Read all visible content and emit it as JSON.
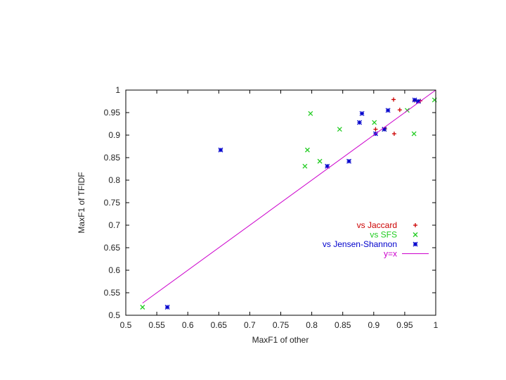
{
  "chart_data": {
    "type": "scatter",
    "title": "",
    "xlabel": "MaxF1 of other",
    "ylabel": "MaxF1 of TFIDF",
    "xlim": [
      0.5,
      1.0
    ],
    "ylim": [
      0.5,
      1.0
    ],
    "xticks": [
      "0.5",
      "0.55",
      "0.6",
      "0.65",
      "0.7",
      "0.75",
      "0.8",
      "0.85",
      "0.9",
      "0.95",
      "1"
    ],
    "yticks": [
      "0.5",
      "0.55",
      "0.6",
      "0.65",
      "0.7",
      "0.75",
      "0.8",
      "0.85",
      "0.9",
      "0.95",
      "1"
    ],
    "xtick_values": [
      0.5,
      0.55,
      0.6,
      0.65,
      0.7,
      0.75,
      0.8,
      0.85,
      0.9,
      0.95,
      1.0
    ],
    "ytick_values": [
      0.5,
      0.55,
      0.6,
      0.65,
      0.7,
      0.75,
      0.8,
      0.85,
      0.9,
      0.95,
      1.0
    ],
    "grid": false,
    "legend_position": "right-middle",
    "series": [
      {
        "name": "vs Jaccard",
        "marker": "plus",
        "color": "#cc0000",
        "points": [
          [
            0.932,
            0.979
          ],
          [
            0.942,
            0.956
          ],
          [
            0.903,
            0.913
          ],
          [
            0.933,
            0.903
          ],
          [
            0.918,
            0.914
          ],
          [
            0.975,
            0.976
          ],
          [
            0.966,
            0.977
          ]
        ]
      },
      {
        "name": "vs SFS",
        "marker": "x",
        "color": "#22cc22",
        "points": [
          [
            0.527,
            0.518
          ],
          [
            0.798,
            0.948
          ],
          [
            0.845,
            0.913
          ],
          [
            0.793,
            0.867
          ],
          [
            0.789,
            0.831
          ],
          [
            0.813,
            0.842
          ],
          [
            0.901,
            0.928
          ],
          [
            0.917,
            0.913
          ],
          [
            0.954,
            0.955
          ],
          [
            0.965,
            0.903
          ],
          [
            0.998,
            0.978
          ]
        ]
      },
      {
        "name": "vs Jensen-Shannon",
        "marker": "star",
        "color": "#0000cc",
        "points": [
          [
            0.567,
            0.518
          ],
          [
            0.653,
            0.867
          ],
          [
            0.825,
            0.831
          ],
          [
            0.86,
            0.842
          ],
          [
            0.877,
            0.928
          ],
          [
            0.881,
            0.948
          ],
          [
            0.903,
            0.903
          ],
          [
            0.917,
            0.913
          ],
          [
            0.923,
            0.955
          ],
          [
            0.966,
            0.978
          ],
          [
            0.972,
            0.975
          ]
        ]
      },
      {
        "name": "y=x",
        "marker": "line",
        "color": "#cc00cc",
        "points": [
          [
            0.527,
            0.527
          ],
          [
            1.0,
            1.0
          ]
        ]
      }
    ]
  }
}
